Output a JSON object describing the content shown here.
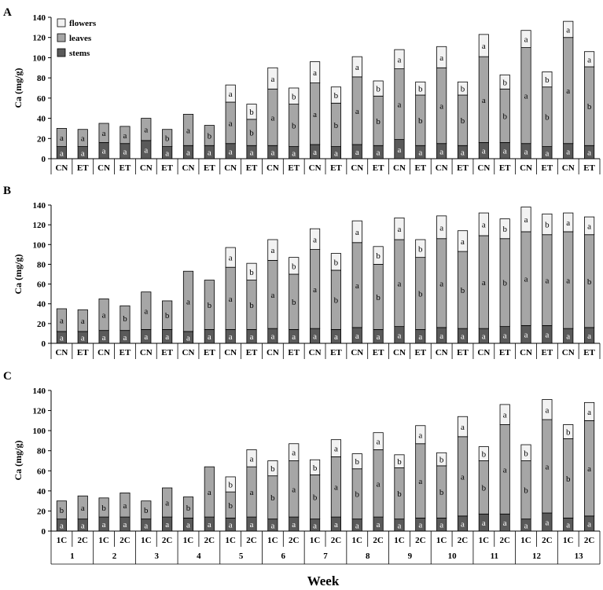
{
  "colors": {
    "stems": "#5a5a5a",
    "leaves": "#a6a6a6",
    "flowers": "#f2f2f2",
    "outline": "#000000"
  },
  "legend": {
    "flowers": "flowers",
    "leaves": "leaves",
    "stems": "stems"
  },
  "xlabel": "Week",
  "chart_data": [
    {
      "type": "bar",
      "panel": "A",
      "stacked": true,
      "ylabel": "Ca (mg/g)",
      "ylim": [
        0,
        140
      ],
      "yticks": [
        0,
        20,
        40,
        60,
        80,
        100,
        120,
        140
      ],
      "categories": [
        "CN",
        "ET",
        "CN",
        "ET",
        "CN",
        "ET",
        "CN",
        "ET",
        "CN",
        "ET",
        "CN",
        "ET",
        "CN",
        "ET",
        "CN",
        "ET",
        "CN",
        "ET",
        "CN",
        "ET",
        "CN",
        "ET",
        "CN",
        "ET",
        "CN",
        "ET"
      ],
      "legend_position": "top-left",
      "series": [
        {
          "name": "stems",
          "values": [
            12,
            12,
            16,
            15,
            18,
            12,
            13,
            13,
            15,
            13,
            13,
            12,
            14,
            12,
            14,
            13,
            19,
            13,
            15,
            13,
            16,
            16,
            15,
            12,
            15,
            13
          ],
          "labels": [
            "a",
            "a",
            "a",
            "a",
            "a",
            "a",
            "a",
            "a",
            "a",
            "a",
            "a",
            "a",
            "a",
            "a",
            "a",
            "a",
            "a",
            "a",
            "a",
            "a",
            "a",
            "a",
            "a",
            "a",
            "a",
            "a"
          ]
        },
        {
          "name": "leaves",
          "values": [
            18,
            17,
            19,
            17,
            22,
            17,
            31,
            20,
            41,
            26,
            56,
            42,
            61,
            43,
            67,
            49,
            70,
            50,
            75,
            50,
            85,
            53,
            95,
            59,
            105,
            78
          ],
          "labels": [
            "a",
            "a",
            "a",
            "a",
            "a",
            "b",
            "a",
            "b",
            "a",
            "b",
            "a",
            "b",
            "a",
            "b",
            "a",
            "b",
            "a",
            "b",
            "a",
            "b",
            "a",
            "b",
            "a",
            "b",
            "a",
            "b"
          ]
        },
        {
          "name": "flowers",
          "values": [
            0,
            0,
            0,
            0,
            0,
            0,
            0,
            0,
            17,
            15,
            21,
            16,
            21,
            16,
            20,
            15,
            19,
            13,
            21,
            13,
            22,
            14,
            17,
            15,
            16,
            15
          ],
          "labels": [
            "",
            "",
            "",
            "",
            "",
            "",
            "",
            "",
            "a",
            "b",
            "a",
            "b",
            "a",
            "b",
            "a",
            "b",
            "a",
            "b",
            "a",
            "b",
            "a",
            "b",
            "a",
            "b",
            "a",
            "a"
          ]
        }
      ]
    },
    {
      "type": "bar",
      "panel": "B",
      "stacked": true,
      "ylabel": "Ca (mg/g)",
      "ylim": [
        0,
        140
      ],
      "yticks": [
        0,
        20,
        40,
        60,
        80,
        100,
        120,
        140
      ],
      "categories": [
        "CN",
        "ET",
        "CN",
        "ET",
        "CN",
        "ET",
        "CN",
        "ET",
        "CN",
        "ET",
        "CN",
        "ET",
        "CN",
        "ET",
        "CN",
        "ET",
        "CN",
        "ET",
        "CN",
        "ET",
        "CN",
        "ET",
        "CN",
        "ET",
        "CN",
        "ET"
      ],
      "series": [
        {
          "name": "stems",
          "values": [
            12,
            12,
            13,
            13,
            14,
            14,
            12,
            14,
            14,
            14,
            15,
            14,
            15,
            14,
            16,
            14,
            17,
            14,
            16,
            15,
            15,
            17,
            18,
            18,
            15,
            16
          ],
          "labels": [
            "a",
            "a",
            "a",
            "a",
            "a",
            "a",
            "a",
            "a",
            "a",
            "a",
            "a",
            "a",
            "a",
            "a",
            "a",
            "a",
            "a",
            "a",
            "a",
            "a",
            "a",
            "a",
            "a",
            "a",
            "a",
            "a"
          ]
        },
        {
          "name": "leaves",
          "values": [
            23,
            22,
            32,
            25,
            38,
            29,
            61,
            50,
            63,
            50,
            69,
            56,
            80,
            60,
            86,
            66,
            88,
            73,
            90,
            78,
            94,
            89,
            95,
            92,
            98,
            94
          ],
          "labels": [
            "a",
            "a",
            "a",
            "b",
            "a",
            "b",
            "a",
            "b",
            "a",
            "b",
            "a",
            "b",
            "a",
            "b",
            "a",
            "b",
            "a",
            "b",
            "a",
            "b",
            "a",
            "b",
            "a",
            "a",
            "a",
            "b"
          ]
        },
        {
          "name": "flowers",
          "values": [
            0,
            0,
            0,
            0,
            0,
            0,
            0,
            0,
            20,
            17,
            21,
            17,
            21,
            17,
            22,
            18,
            22,
            18,
            23,
            21,
            23,
            20,
            25,
            21,
            19,
            18
          ],
          "labels": [
            "",
            "",
            "",
            "",
            "",
            "",
            "",
            "",
            "a",
            "b",
            "a",
            "b",
            "a",
            "b",
            "a",
            "b",
            "a",
            "b",
            "a",
            "a",
            "a",
            "b",
            "a",
            "b",
            "a",
            "a"
          ]
        }
      ]
    },
    {
      "type": "bar",
      "panel": "C",
      "stacked": true,
      "ylabel": "Ca (mg/g)",
      "ylim": [
        0,
        140
      ],
      "yticks": [
        0,
        20,
        40,
        60,
        80,
        100,
        120,
        140
      ],
      "categories": [
        "1C",
        "2C",
        "1C",
        "2C",
        "1C",
        "2C",
        "1C",
        "2C",
        "1C",
        "2C",
        "1C",
        "2C",
        "1C",
        "2C",
        "1C",
        "2C",
        "1C",
        "2C",
        "1C",
        "2C",
        "1C",
        "2C",
        "1C",
        "2C",
        "1C",
        "2C"
      ],
      "groups": [
        "1",
        "2",
        "3",
        "4",
        "5",
        "6",
        "7",
        "8",
        "9",
        "10",
        "11",
        "12",
        "13"
      ],
      "series": [
        {
          "name": "stems",
          "values": [
            12,
            12,
            14,
            14,
            12,
            14,
            13,
            14,
            13,
            14,
            12,
            14,
            12,
            14,
            12,
            14,
            12,
            13,
            13,
            15,
            17,
            17,
            12,
            18,
            13,
            15
          ],
          "labels": [
            "a",
            "a",
            "a",
            "a",
            "a",
            "a",
            "a",
            "a",
            "a",
            "a",
            "a",
            "a",
            "a",
            "a",
            "a",
            "a",
            "a",
            "a",
            "a",
            "a",
            "a",
            "a",
            "a",
            "a",
            "a",
            "a"
          ]
        },
        {
          "name": "leaves",
          "values": [
            18,
            23,
            19,
            24,
            18,
            29,
            21,
            50,
            26,
            50,
            43,
            56,
            44,
            60,
            50,
            67,
            51,
            74,
            52,
            79,
            53,
            89,
            58,
            93,
            79,
            95
          ],
          "labels": [
            "b",
            "a",
            "b",
            "a",
            "b",
            "a",
            "b",
            "a",
            "b",
            "a",
            "b",
            "a",
            "b",
            "a",
            "b",
            "a",
            "b",
            "a",
            "b",
            "a",
            "b",
            "a",
            "b",
            "a",
            "b",
            "a"
          ]
        },
        {
          "name": "flowers",
          "values": [
            0,
            0,
            0,
            0,
            0,
            0,
            0,
            0,
            15,
            17,
            15,
            17,
            15,
            17,
            15,
            17,
            13,
            18,
            13,
            20,
            14,
            20,
            16,
            20,
            14,
            18
          ],
          "labels": [
            "",
            "",
            "",
            "",
            "",
            "",
            "",
            "",
            "b",
            "a",
            "b",
            "a",
            "b",
            "a",
            "b",
            "a",
            "b",
            "a",
            "b",
            "a",
            "b",
            "a",
            "b",
            "a",
            "b",
            "a"
          ]
        }
      ]
    }
  ]
}
